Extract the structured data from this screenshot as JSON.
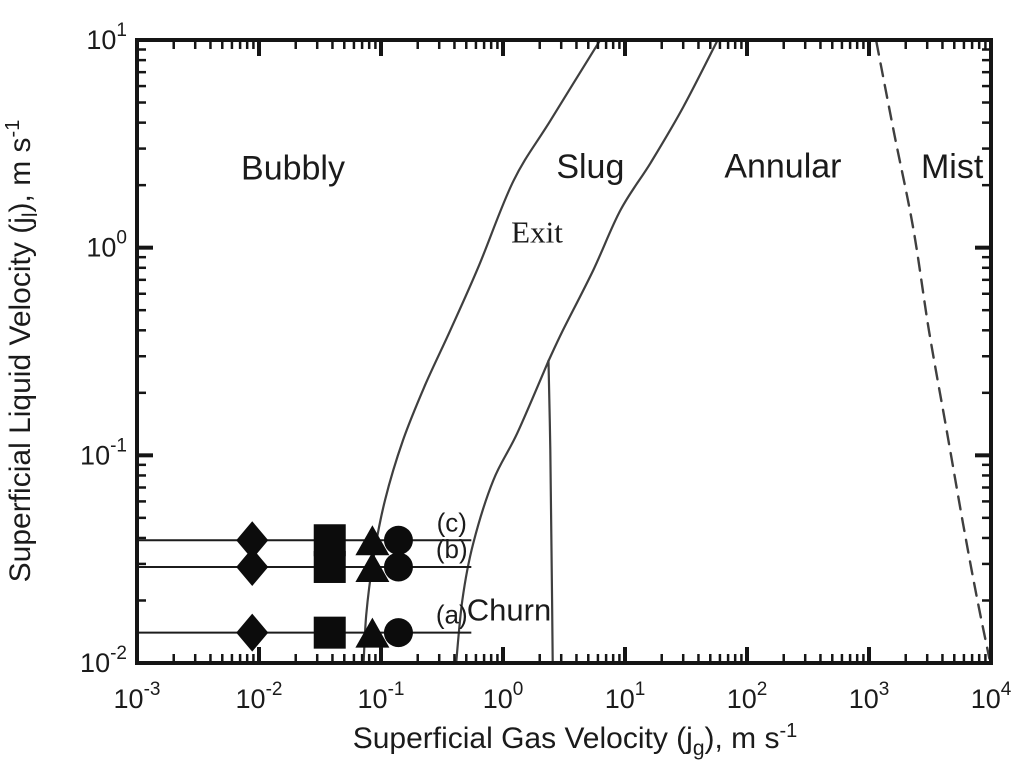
{
  "figure_title": "",
  "colors": {
    "background": "#ffffff",
    "ink": "#151515",
    "curve": "#3f3f3f",
    "marker": "#0c0c0c",
    "sample_line": "#1c1c1c"
  },
  "chart_data": {
    "type": "line",
    "subtype": "two-phase-flow-regime-map",
    "grid": false,
    "legend": "none",
    "tick_base": "10",
    "x_scale": "log",
    "y_scale": "log",
    "xlim": [
      0.001,
      10000
    ],
    "ylim": [
      0.01,
      10
    ],
    "x_tick_exponents": [
      -3,
      -2,
      -1,
      0,
      1,
      2,
      3,
      4
    ],
    "y_tick_exponents": [
      -2,
      -1,
      0,
      1
    ],
    "xlabel_parts": [
      {
        "t": "Superficial Gas Velocity (j",
        "kind": "base"
      },
      {
        "t": "g",
        "kind": "sub"
      },
      {
        "t": "), m s",
        "kind": "base"
      },
      {
        "t": "-1",
        "kind": "sup"
      }
    ],
    "ylabel_parts": [
      {
        "t": "Superficial Liquid Velocity (j",
        "kind": "base"
      },
      {
        "t": "l",
        "kind": "sub"
      },
      {
        "t": "), m s",
        "kind": "base"
      },
      {
        "t": "-1",
        "kind": "sup"
      }
    ],
    "regions": [
      {
        "label": "Bubbly",
        "jg": 0.019,
        "jl": 2.4,
        "font": "sans",
        "size": 34
      },
      {
        "label": "Slug",
        "jg": 5.2,
        "jl": 2.45,
        "font": "sans",
        "size": 34
      },
      {
        "label": "Exit",
        "jg": 1.9,
        "jl": 1.19,
        "font": "serif",
        "size": 31
      },
      {
        "label": "Annular",
        "jg": 197,
        "jl": 2.46,
        "font": "sans",
        "size": 34
      },
      {
        "label": "Mist",
        "jg": 4800,
        "jl": 2.45,
        "font": "sans",
        "size": 34
      },
      {
        "label": "Churn",
        "jg": 1.12,
        "jl": 0.018,
        "font": "sans",
        "size": 31
      }
    ],
    "boundaries": [
      {
        "name": "bubbly-slug-boundary",
        "style": "solid",
        "points": [
          [
            6.6,
            10.5
          ],
          [
            2.45,
            4.1
          ],
          [
            1.22,
            2.1
          ],
          [
            0.63,
            0.81
          ],
          [
            0.37,
            0.4
          ],
          [
            0.23,
            0.218
          ],
          [
            0.152,
            0.119
          ],
          [
            0.108,
            0.061
          ],
          [
            0.086,
            0.031
          ],
          [
            0.0757,
            0.017
          ],
          [
            0.0714,
            0.009
          ]
        ]
      },
      {
        "name": "slug-annular-boundary-upper",
        "style": "solid",
        "points": [
          [
            60,
            10.5
          ],
          [
            30,
            4.75
          ],
          [
            16.2,
            2.56
          ],
          [
            9.2,
            1.52
          ],
          [
            5.5,
            0.78
          ],
          [
            3.1,
            0.4
          ],
          [
            2.36,
            0.285
          ]
        ]
      },
      {
        "name": "slug-churn-boundary-lower",
        "style": "solid",
        "points": [
          [
            2.36,
            0.285
          ],
          [
            1.31,
            0.128
          ],
          [
            0.834,
            0.076
          ],
          [
            0.571,
            0.0378
          ],
          [
            0.464,
            0.02
          ],
          [
            0.407,
            0.009
          ]
        ]
      },
      {
        "name": "churn-annular-boundary",
        "style": "solid",
        "points": [
          [
            2.36,
            0.285
          ],
          [
            2.44,
            0.107
          ],
          [
            2.5,
            0.035
          ],
          [
            2.56,
            0.009
          ]
        ]
      },
      {
        "name": "annular-mist-boundary",
        "style": "dashed",
        "points": [
          [
            1150,
            9.8
          ],
          [
            1600,
            3.6
          ],
          [
            2300,
            1.25
          ],
          [
            3100,
            0.4
          ],
          [
            4300,
            0.135
          ],
          [
            5900,
            0.047
          ],
          [
            7500,
            0.022
          ],
          [
            9700,
            0.0105
          ]
        ]
      }
    ],
    "series": [
      {
        "label": "(a)",
        "jl": 0.014,
        "marker_jg": [
          0.0088,
          0.038,
          0.085,
          0.139
        ],
        "markers": [
          "diamond",
          "square",
          "triangle",
          "circle"
        ],
        "line_jg_extent": [
          0.001,
          0.55
        ]
      },
      {
        "label": "(b)",
        "jl": 0.029,
        "marker_jg": [
          0.0088,
          0.038,
          0.085,
          0.139
        ],
        "markers": [
          "diamond",
          "square",
          "triangle",
          "circle"
        ],
        "line_jg_extent": [
          0.001,
          0.55
        ]
      },
      {
        "label": "(c)",
        "jl": 0.039,
        "marker_jg": [
          0.0088,
          0.038,
          0.085,
          0.139
        ],
        "markers": [
          "diamond",
          "square",
          "triangle",
          "circle"
        ],
        "line_jg_extent": [
          0.001,
          0.55
        ]
      }
    ],
    "series_label_jg": 0.38
  }
}
